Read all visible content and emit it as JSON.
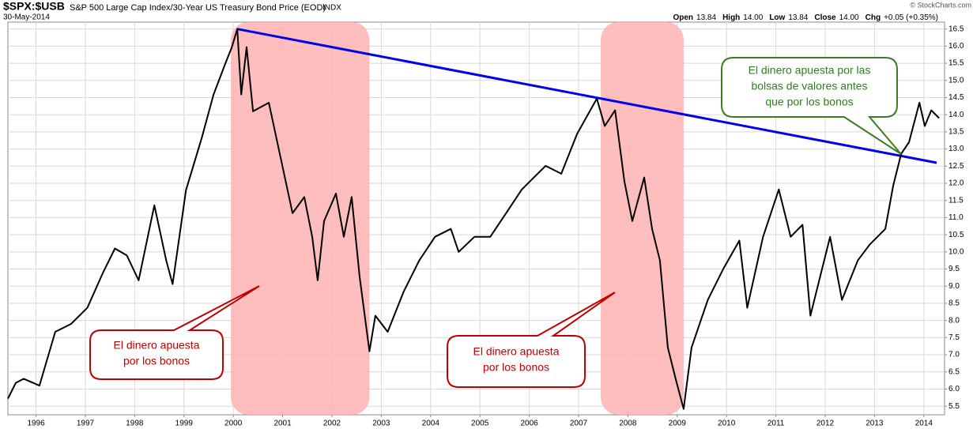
{
  "chart_data": {
    "type": "line",
    "symbol": "$SPX:$USB",
    "title": "S&P 500 Large Cap Index/30-Year US Treasury Bond Price (EOD)",
    "exchange": "INDX",
    "date": "30-May-2014",
    "quote": [
      {
        "label": "Open",
        "value": "13.84"
      },
      {
        "label": "High",
        "value": "14.00"
      },
      {
        "label": "Low",
        "value": "13.84"
      },
      {
        "label": "Close",
        "value": "14.00"
      },
      {
        "label": "Chg",
        "value": "+0.05 (+0.35%)"
      }
    ],
    "credit": "© StockCharts.com",
    "series": [
      {
        "color": "#000000",
        "x": [
          1995.43,
          1995.59,
          1995.75,
          1996.07,
          1996.39,
          1996.71,
          1997.04,
          1997.36,
          1997.6,
          1997.84,
          1998.08,
          1998.4,
          1998.64,
          1998.77,
          1999.04,
          1999.36,
          1999.6,
          1999.84,
          1999.97,
          2000.08,
          2000.16,
          2000.27,
          2000.4,
          2000.72,
          2000.96,
          2001.2,
          2001.44,
          2001.6,
          2001.71,
          2001.84,
          2002.08,
          2002.24,
          2002.4,
          2002.56,
          2002.76,
          2002.88,
          2003.13,
          2003.45,
          2003.77,
          2004.09,
          2004.41,
          2004.57,
          2004.89,
          2005.21,
          2005.53,
          2005.85,
          2006.33,
          2006.65,
          2006.97,
          2007.37,
          2007.53,
          2007.74,
          2007.93,
          2008.09,
          2008.33,
          2008.49,
          2008.65,
          2008.81,
          2008.97,
          2009.13,
          2009.29,
          2009.62,
          2009.94,
          2010.26,
          2010.42,
          2010.74,
          2011.06,
          2011.3,
          2011.54,
          2011.7,
          2011.94,
          2012.1,
          2012.34,
          2012.66,
          2012.9,
          2013.22,
          2013.38,
          2013.54,
          2013.7,
          2013.91,
          2014.02,
          2014.15,
          2014.31
        ],
        "values": [
          5.72,
          6.18,
          6.3,
          6.1,
          7.67,
          7.9,
          8.37,
          9.4,
          10.1,
          9.9,
          9.17,
          11.36,
          9.75,
          9.06,
          11.8,
          13.32,
          14.59,
          15.5,
          15.97,
          16.5,
          14.59,
          15.97,
          14.1,
          14.35,
          12.74,
          11.13,
          11.6,
          10.44,
          9.17,
          10.9,
          11.7,
          10.44,
          11.6,
          9.29,
          7.1,
          8.14,
          7.67,
          8.83,
          9.75,
          10.44,
          10.67,
          10.0,
          10.44,
          10.44,
          11.13,
          11.82,
          12.51,
          12.28,
          13.44,
          14.47,
          13.67,
          14.13,
          12.05,
          10.9,
          12.17,
          10.67,
          9.75,
          7.21,
          6.29,
          5.42,
          7.21,
          8.6,
          9.52,
          10.33,
          8.37,
          10.44,
          11.82,
          10.44,
          10.79,
          8.14,
          9.52,
          10.44,
          8.6,
          9.75,
          10.21,
          10.67,
          11.94,
          12.86,
          13.2,
          14.35,
          13.67,
          14.13,
          13.9
        ]
      }
    ],
    "trendline": {
      "color": "#0000ee",
      "x": [
        2000.08,
        2014.26
      ],
      "values": [
        16.5,
        12.6
      ]
    },
    "shaded_ranges": {
      "color": "#ffb3b3",
      "ranges": [
        [
          1999.95,
          2002.76
        ],
        [
          2007.45,
          2009.13
        ]
      ]
    },
    "annotations": [
      {
        "lines": [
          "El dinero apuesta",
          "por los bonos"
        ]
      },
      {
        "lines": [
          "El dinero apuesta",
          "por los bonos"
        ]
      },
      {
        "lines": [
          "El dinero apuesta por las",
          "bolsas de valores antes",
          "que por los bonos"
        ]
      }
    ],
    "xlim": [
      1995.43,
      2014.42
    ],
    "ylim": [
      5.25,
      16.7
    ],
    "xticks": [
      1996,
      1997,
      1998,
      1999,
      2000,
      2001,
      2002,
      2003,
      2004,
      2005,
      2006,
      2007,
      2008,
      2009,
      2010,
      2011,
      2012,
      2013,
      2014
    ],
    "yticks": [
      5.5,
      {
        "value": 6,
        "label": "6.0"
      },
      6.5,
      {
        "value": 7,
        "label": "7.0"
      },
      7.5,
      {
        "value": 8,
        "label": "8.0"
      },
      8.5,
      {
        "value": 9,
        "label": "9.0"
      },
      9.5,
      {
        "value": 10,
        "label": "10.0"
      },
      10.5,
      {
        "value": 11,
        "label": "11.0"
      },
      11.5,
      {
        "value": 12,
        "label": "12.0"
      },
      12.5,
      {
        "value": 13,
        "label": "13.0"
      },
      13.5,
      {
        "value": 14,
        "label": "14.0"
      },
      14.5,
      {
        "value": 15,
        "label": "15.0"
      },
      15.5,
      {
        "value": 16,
        "label": "16.0"
      },
      16.5
    ],
    "grid": true
  }
}
